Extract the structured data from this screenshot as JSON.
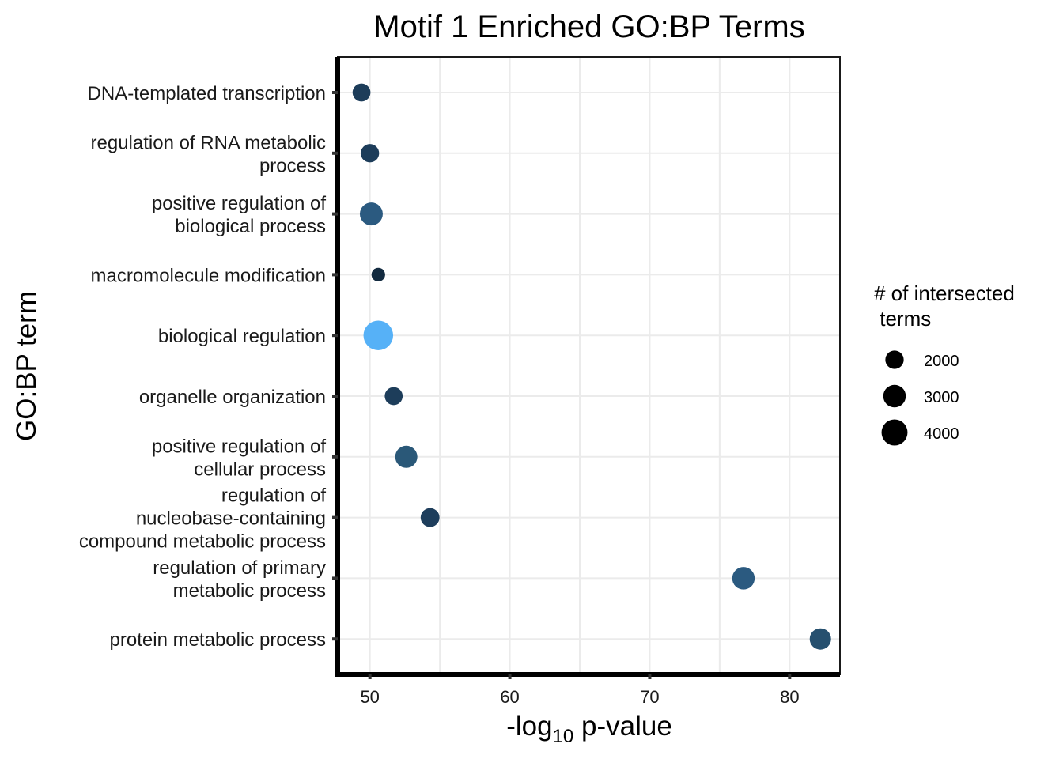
{
  "chart_data": {
    "type": "scatter",
    "title": "Motif 1 Enriched GO:BP Terms",
    "xlabel": {
      "main": "-log",
      "sub": "10",
      "rest": " p-value"
    },
    "ylabel": "GO:BP term",
    "xlim": [
      47.7,
      83.6
    ],
    "xticks": [
      50,
      60,
      70,
      80
    ],
    "grid": true,
    "legend_position": "right",
    "size_legend": {
      "title": [
        "# of intersected",
        " terms"
      ],
      "entries": [
        {
          "label": "2000",
          "value": 2000
        },
        {
          "label": "3000",
          "value": 3000
        },
        {
          "label": "4000",
          "value": 4000
        }
      ]
    },
    "points": [
      {
        "term": [
          "DNA-templated transcription"
        ],
        "x": 49.4,
        "size": 1900,
        "color": "#1d3d5a"
      },
      {
        "term": [
          "regulation of RNA metabolic",
          "process"
        ],
        "x": 50.0,
        "size": 2000,
        "color": "#1d3d5a"
      },
      {
        "term": [
          "positive regulation of",
          "biological process"
        ],
        "x": 50.1,
        "size": 3100,
        "color": "#2b5a80"
      },
      {
        "term": [
          "macromolecule modification"
        ],
        "x": 50.6,
        "size": 1100,
        "color": "#132b40"
      },
      {
        "term": [
          "biological regulation"
        ],
        "x": 50.6,
        "size": 5200,
        "color": "#56b1f7"
      },
      {
        "term": [
          "organelle organization"
        ],
        "x": 51.7,
        "size": 1900,
        "color": "#1d3d5a"
      },
      {
        "term": [
          "positive regulation of",
          "cellular process"
        ],
        "x": 52.6,
        "size": 2900,
        "color": "#2a5878"
      },
      {
        "term": [
          "regulation of",
          "nucleobase-containing",
          "compound metabolic process"
        ],
        "x": 54.3,
        "size": 2100,
        "color": "#1e3e5c"
      },
      {
        "term": [
          "regulation of primary",
          "metabolic process"
        ],
        "x": 76.7,
        "size": 3000,
        "color": "#2b5a80"
      },
      {
        "term": [
          "protein metabolic process"
        ],
        "x": 82.2,
        "size": 2700,
        "color": "#26506f"
      }
    ]
  }
}
